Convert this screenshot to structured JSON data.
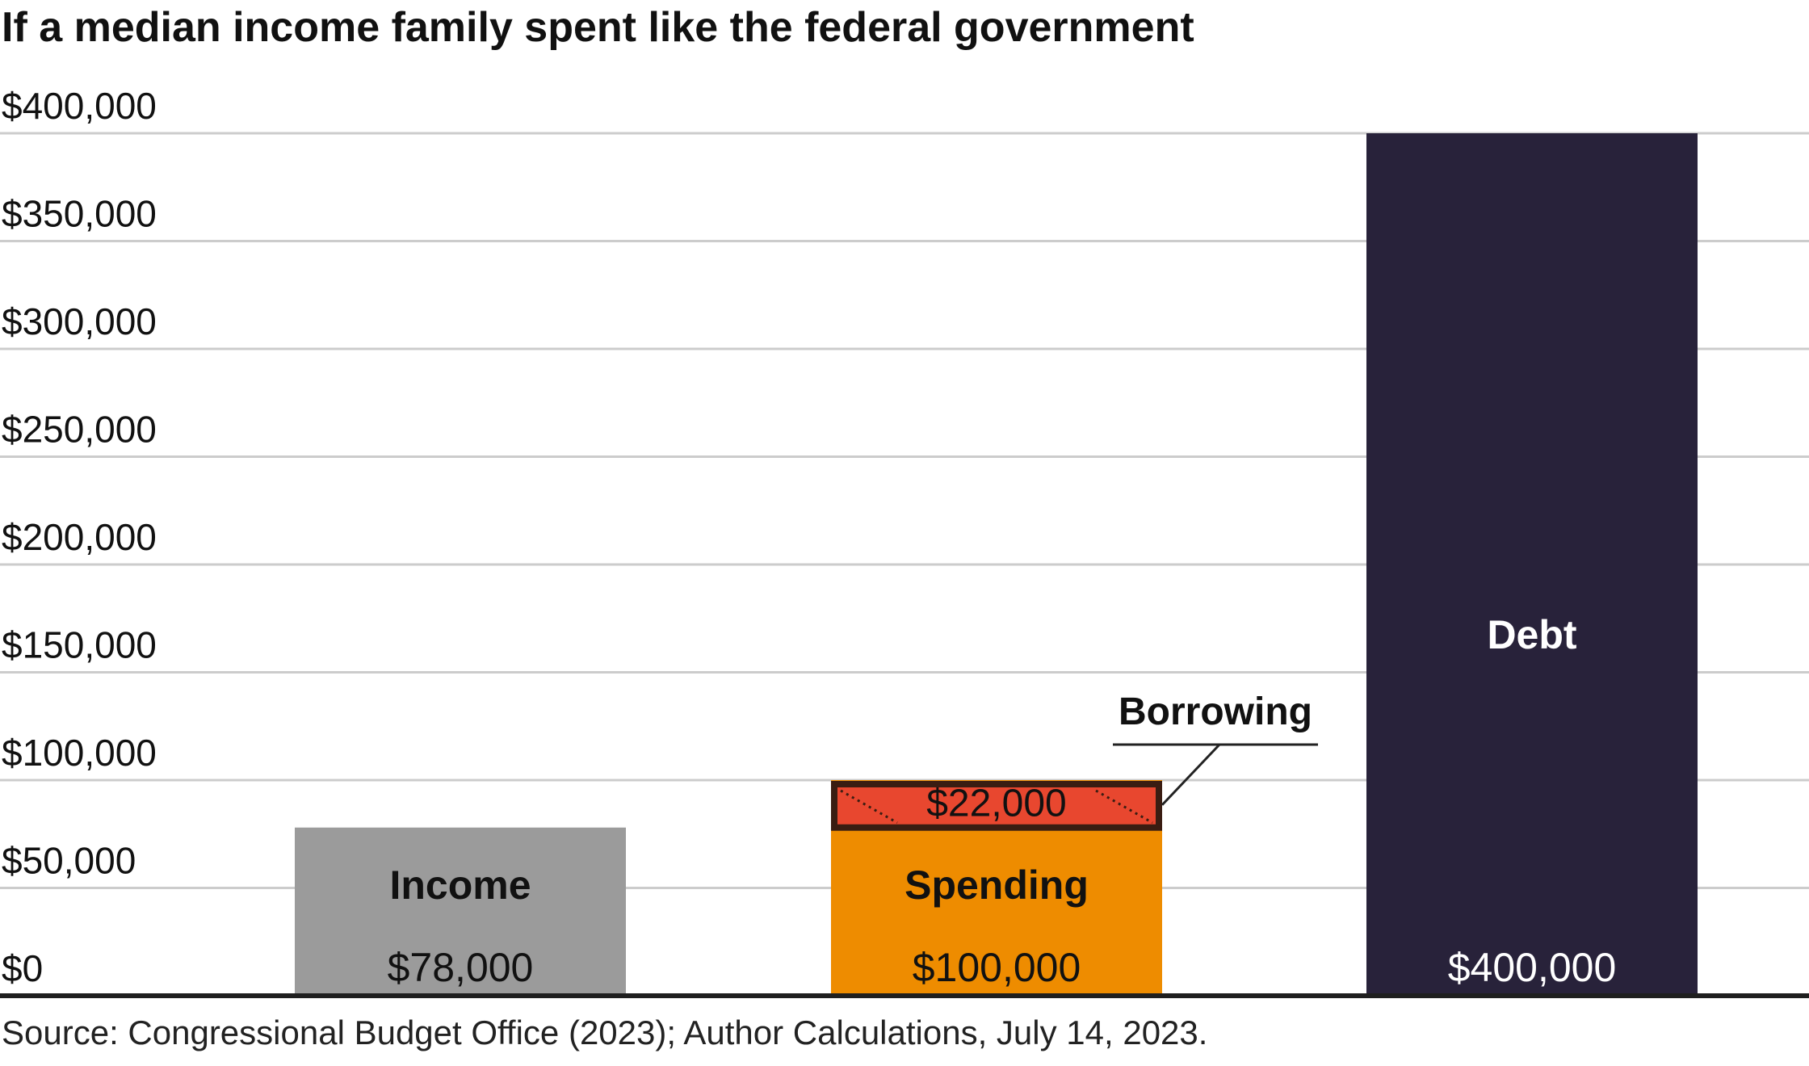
{
  "chart_data": {
    "type": "bar",
    "title": "If a median income family spent like the federal government",
    "categories": [
      "Income",
      "Spending",
      "Debt"
    ],
    "values": [
      78000,
      100000,
      400000
    ],
    "value_labels": [
      "$78,000",
      "$100,000",
      "$400,000"
    ],
    "bar_colors": [
      "#9b9b9b",
      "#ee8c00",
      "#28223a"
    ],
    "bar_label_colors": [
      "#111111",
      "#111111",
      "#ffffff"
    ],
    "ylim": [
      0,
      400000
    ],
    "y_ticks": [
      0,
      50000,
      100000,
      150000,
      200000,
      250000,
      300000,
      350000,
      400000
    ],
    "y_tick_labels": [
      "$0",
      "$50,000",
      "$100,000",
      "$150,000",
      "$200,000",
      "$250,000",
      "$300,000",
      "$350,000",
      "$400,000"
    ],
    "grid": true,
    "xlabel": "",
    "ylabel": "",
    "annotation": {
      "category": "Spending",
      "label": "Borrowing",
      "value": 22000,
      "value_label": "$22,000",
      "color": "#e8472f"
    }
  },
  "source": "Source: Congressional Budget Office (2023); Author Calculations, July 14, 2023."
}
